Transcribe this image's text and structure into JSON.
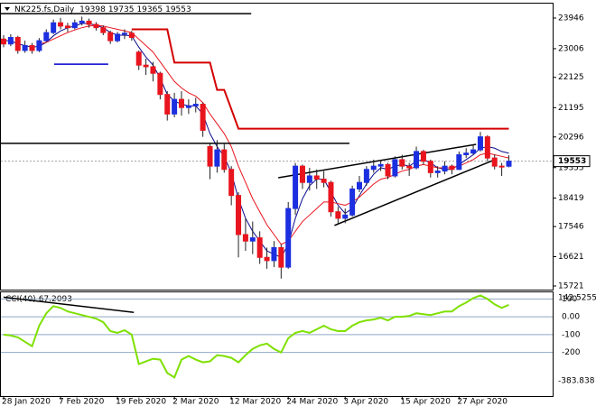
{
  "chart_data": {
    "type": "candlestick",
    "title": "NK225.fs,Daily",
    "categories": [
      "28 Jan 2020",
      null,
      null,
      null,
      null,
      null,
      null,
      null,
      "7 Feb 2020",
      null,
      null,
      null,
      null,
      null,
      null,
      null,
      "19 Feb 2020",
      null,
      null,
      null,
      null,
      null,
      null,
      null,
      "2 Mar 2020",
      null,
      null,
      null,
      null,
      null,
      null,
      null,
      "12 Mar 2020",
      null,
      null,
      null,
      null,
      null,
      null,
      null,
      "24 Mar 2020",
      null,
      null,
      null,
      null,
      null,
      null,
      null,
      "3 Apr 2020",
      null,
      null,
      null,
      null,
      null,
      null,
      null,
      "15 Apr 2020",
      null,
      null,
      null,
      null,
      null,
      null,
      null,
      "27 Apr 2020",
      null,
      null,
      null,
      null,
      null,
      null,
      null
    ],
    "open": [
      23300,
      23150,
      23350,
      22950,
      23100,
      22950,
      23250,
      23500,
      23800,
      23700,
      23650,
      23800,
      23850,
      23750,
      23650,
      23500,
      23250,
      23450,
      23480,
      22900,
      22500,
      22450,
      22250,
      21600,
      21000,
      21450,
      21200,
      21250,
      21300,
      20000,
      19400,
      19900,
      19300,
      18500,
      17300,
      17100,
      17200,
      16600,
      16500,
      16900,
      16300,
      18100,
      19400,
      18900,
      19100,
      19000,
      18900,
      18000,
      17800,
      17900,
      18700,
      18900,
      19300,
      19400,
      19450,
      19100,
      19600,
      19400,
      19350,
      19850,
      19550,
      19200,
      19250,
      19400,
      19300,
      19750,
      19800,
      19900,
      20300,
      19650,
      19400,
      19398
    ],
    "high": [
      23420,
      23450,
      23400,
      23250,
      23180,
      23330,
      23600,
      23900,
      23950,
      23800,
      23900,
      23990,
      23930,
      23820,
      23720,
      23560,
      23520,
      23600,
      23550,
      22950,
      22700,
      22600,
      22300,
      21700,
      21650,
      21700,
      21450,
      21500,
      21350,
      20100,
      20200,
      20100,
      19400,
      18600,
      17800,
      17700,
      17400,
      16900,
      17100,
      17000,
      18300,
      19500,
      19450,
      19350,
      19300,
      19250,
      18950,
      18150,
      18100,
      18800,
      19100,
      19400,
      19600,
      19600,
      19500,
      19700,
      19750,
      19500,
      20000,
      19900,
      19600,
      19400,
      19550,
      19450,
      19850,
      19950,
      20050,
      20450,
      20350,
      19750,
      19500,
      19735
    ],
    "low": [
      23050,
      23080,
      22850,
      22880,
      22850,
      22900,
      23200,
      23450,
      23600,
      23520,
      23600,
      23720,
      23650,
      23560,
      23420,
      23150,
      23200,
      23300,
      23250,
      22350,
      22200,
      22000,
      21450,
      20800,
      20900,
      20950,
      21000,
      21050,
      20300,
      19000,
      19200,
      19200,
      18200,
      16600,
      16800,
      16700,
      16400,
      16250,
      16300,
      15950,
      16250,
      17900,
      18700,
      18650,
      18700,
      18750,
      17850,
      17600,
      17650,
      17850,
      18600,
      18800,
      19200,
      19250,
      19000,
      19050,
      19300,
      19100,
      19300,
      19450,
      19050,
      19050,
      19150,
      19150,
      19280,
      19650,
      19750,
      19850,
      19550,
      19300,
      19100,
      19365
    ],
    "close": [
      23150,
      23350,
      22950,
      23100,
      22950,
      23250,
      23500,
      23800,
      23700,
      23650,
      23800,
      23850,
      23750,
      23650,
      23500,
      23250,
      23450,
      23480,
      23350,
      22500,
      22450,
      22250,
      21600,
      21000,
      21450,
      21200,
      21250,
      21300,
      20500,
      19400,
      19900,
      19300,
      18500,
      17300,
      17100,
      17200,
      16600,
      16500,
      16900,
      16300,
      18100,
      19400,
      18900,
      19100,
      19000,
      18900,
      18000,
      17800,
      17900,
      18700,
      18900,
      19300,
      19400,
      19450,
      19100,
      19600,
      19400,
      19350,
      19850,
      19550,
      19200,
      19250,
      19400,
      19300,
      19750,
      19800,
      19900,
      20300,
      19650,
      19400,
      19398,
      19553
    ],
    "up_color": "#1c2fe0",
    "down_color": "#e8141e",
    "series": [
      {
        "color": "#0b0b8c",
        "width": 1,
        "values": [
          23250,
          23250,
          23150,
          23100,
          23050,
          23080,
          23200,
          23400,
          23550,
          23650,
          23700,
          23780,
          23780,
          23720,
          23650,
          23500,
          23420,
          23420,
          23400,
          23050,
          22750,
          22500,
          22100,
          21600,
          21400,
          21300,
          21250,
          21250,
          21000,
          20400,
          20000,
          19700,
          19200,
          18400,
          17800,
          17400,
          17100,
          16800,
          16700,
          16600,
          17000,
          17800,
          18400,
          18800,
          19000,
          19000,
          18600,
          18200,
          17950,
          18100,
          18500,
          18850,
          19150,
          19350,
          19300,
          19400,
          19450,
          19400,
          19550,
          19600,
          19500,
          19350,
          19300,
          19300,
          19450,
          19600,
          19750,
          19950,
          20000,
          19950,
          19850,
          19800
        ]
      },
      {
        "color": "#e8141e",
        "width": 1,
        "values": [
          null,
          null,
          null,
          null,
          null,
          23150,
          23200,
          23300,
          23400,
          23500,
          23580,
          23650,
          23700,
          23720,
          23700,
          23650,
          23600,
          23550,
          23500,
          23300,
          23100,
          22900,
          22600,
          22300,
          22000,
          21800,
          21650,
          21550,
          21350,
          21000,
          20700,
          20400,
          20000,
          19400,
          18900,
          18400,
          18000,
          17600,
          17300,
          17000,
          17100,
          17400,
          17700,
          17900,
          18100,
          18300,
          18300,
          18250,
          18200,
          18300,
          18450,
          18650,
          18850,
          19000,
          19050,
          19150,
          19250,
          19300,
          19400,
          19450,
          19400,
          19350,
          19350,
          19350,
          19400,
          19500,
          19600,
          19750,
          19800,
          19750,
          19700,
          19650
        ]
      },
      {
        "color": "#d40000",
        "width": 2,
        "values": [
          null,
          null,
          null,
          null,
          null,
          null,
          null,
          null,
          null,
          null,
          null,
          null,
          null,
          null,
          null,
          null,
          null,
          null,
          23600,
          23600,
          23600,
          23600,
          23600,
          23600,
          22580,
          22580,
          22580,
          22580,
          22580,
          22580,
          21740,
          21740,
          21150,
          20550,
          20550,
          20550,
          20550,
          20550,
          20550,
          20550,
          20550,
          20550,
          20550,
          20550,
          20550,
          20550,
          20550,
          20550,
          20550,
          20550,
          20550,
          20550,
          20550,
          20550,
          20550,
          20550,
          20550,
          20550,
          20550,
          20550,
          20550,
          20550,
          20550,
          20550,
          20550,
          20550,
          20550,
          20550,
          20550,
          20550,
          20550,
          20550
        ]
      }
    ],
    "lines": [
      {
        "color": "#000000",
        "x": [
          -0.5,
          34.8
        ],
        "values": [
          24080,
          24080
        ]
      },
      {
        "color": "#000000",
        "x": [
          -0.5,
          48.6
        ],
        "values": [
          20100,
          20100
        ]
      },
      {
        "color": "#000000",
        "x": [
          38.6,
          66.4
        ],
        "values": [
          19045,
          20070
        ]
      },
      {
        "color": "#000000",
        "x": [
          46.5,
          68.7
        ],
        "values": [
          17580,
          19570
        ]
      },
      {
        "color": "#0000cd",
        "x": [
          7.1,
          14.7
        ],
        "values": [
          22530,
          22530
        ]
      }
    ],
    "ylim": [
      15638,
      24361
    ],
    "yticks": [
      23946,
      23006,
      22125,
      21195,
      20296,
      19355,
      18419,
      17546,
      16621,
      15721
    ],
    "cci": {
      "name": "CCI(40)",
      "color": "#7fe000",
      "values": [
        -100,
        -105,
        -115,
        -140,
        -165,
        -50,
        20,
        60,
        50,
        30,
        20,
        10,
        0,
        -10,
        -30,
        -80,
        -90,
        -75,
        -100,
        -265,
        -250,
        -235,
        -240,
        -315,
        -340,
        -240,
        -220,
        -240,
        -255,
        -250,
        -215,
        -220,
        -230,
        -255,
        -215,
        -180,
        -160,
        -150,
        -180,
        -200,
        -120,
        -90,
        -80,
        -90,
        -70,
        -50,
        -70,
        -80,
        -80,
        -50,
        -30,
        -20,
        -15,
        -5,
        -20,
        0,
        0,
        5,
        20,
        15,
        10,
        20,
        30,
        30,
        60,
        80,
        105,
        120,
        100,
        70,
        50,
        67.2093
      ],
      "ylim": [
        -383.838,
        142.5255
      ],
      "yticks": [
        100,
        {
          "value": 0,
          "label": "0.00"
        },
        -100,
        -200
      ],
      "line": {
        "color": "#000000",
        "x": [
          0,
          18.3
        ],
        "values": [
          110,
          25
        ]
      }
    }
  }
}
